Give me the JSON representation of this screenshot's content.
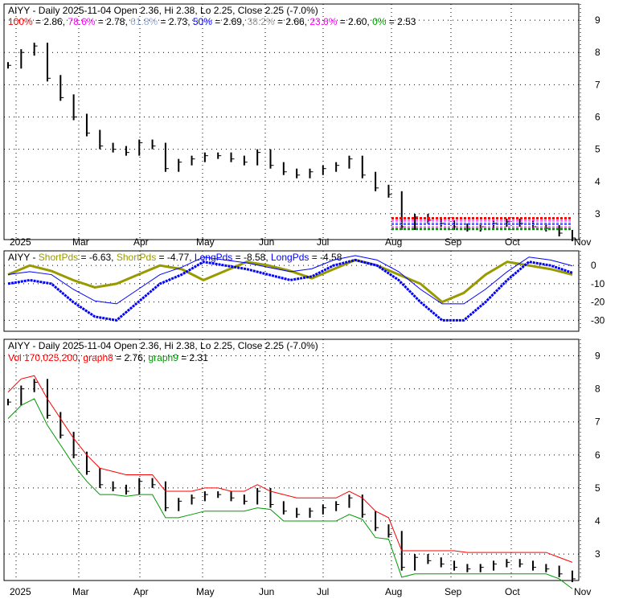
{
  "chart_data": [
    {
      "type": "line",
      "panel": "price-fib",
      "title": "AIYY - Daily 2025-11-04 Open 2.36, Hi 2.38, Lo 2.25, Close 2.25 (-7.0%)",
      "fib": [
        {
          "label": "100%",
          "value": "2.86",
          "color": "#ff0000"
        },
        {
          "label": "78.6%",
          "value": "2.78",
          "color": "#ff00ff"
        },
        {
          "label": "61.8%",
          "value": "2.73",
          "color": "#99aacc"
        },
        {
          "label": "50%",
          "value": "2.69",
          "color": "#0000ff"
        },
        {
          "label": "38.2%",
          "value": "2.66",
          "color": "#999999"
        },
        {
          "label": "23.6%",
          "value": "2.60",
          "color": "#ff00ff"
        },
        {
          "label": "0%",
          "value": "2.53",
          "color": "#009900"
        }
      ],
      "yticks": [
        3,
        4,
        5,
        6,
        7,
        8,
        9
      ],
      "ylim": [
        2.2,
        9.5
      ]
    },
    {
      "type": "line",
      "panel": "oscillator",
      "title_prefix": "AIYY - ",
      "legend": [
        {
          "label": "ShortPds",
          "value": "-6.63",
          "color": "#999900"
        },
        {
          "label": "ShortPds",
          "value": "-4.77",
          "color": "#999900"
        },
        {
          "label": "LongPds",
          "value": "-8.58",
          "color": "#0000ff"
        },
        {
          "label": "LongPds",
          "value": "-4.58",
          "color": "#0000ff"
        }
      ],
      "yticks": [
        0,
        -10,
        -20,
        -30
      ],
      "ylim": [
        -36,
        8
      ]
    },
    {
      "type": "line",
      "panel": "price-stops",
      "title": "AIYY - Daily 2025-11-04 Open 2.36, Hi 2.38, Lo 2.25, Close 2.25 (-7.0%)",
      "legend": [
        {
          "label": "Vol 170,025,200",
          "color": "#ff0000"
        },
        {
          "label": "graph8 = 2.76",
          "color": "#ff0000"
        },
        {
          "label": "graph9 = 2.31",
          "color": "#009900"
        }
      ],
      "yticks": [
        3,
        4,
        5,
        6,
        7,
        8,
        9
      ],
      "ylim": [
        2.2,
        9.5
      ]
    }
  ],
  "xlabels": [
    "2025",
    "Mar",
    "Apr",
    "May",
    "Jun",
    "Jul",
    "Aug",
    "Sep",
    "Oct",
    "Nov"
  ],
  "closes": [
    7.6,
    8.0,
    8.2,
    7.2,
    6.6,
    6.0,
    5.5,
    5.1,
    5.0,
    4.9,
    5.2,
    5.1,
    4.4,
    4.6,
    4.7,
    4.8,
    4.8,
    4.7,
    4.6,
    4.9,
    4.5,
    4.3,
    4.2,
    4.3,
    4.4,
    4.5,
    4.7,
    4.2,
    3.8,
    3.6,
    2.6,
    2.9,
    2.8,
    2.7,
    2.6,
    2.55,
    2.6,
    2.7,
    2.75,
    2.7,
    2.6,
    2.55,
    2.4,
    2.25
  ],
  "short_osc": [
    -5,
    0,
    -3,
    -8,
    -12,
    -10,
    -5,
    0,
    -2,
    -8,
    -3,
    2,
    0,
    -3,
    -7,
    -2,
    3,
    0,
    -5,
    -10,
    -20,
    -15,
    -5,
    2,
    0,
    -2,
    -5
  ],
  "long_osc": [
    -10,
    -8,
    -10,
    -20,
    -28,
    -30,
    -20,
    -10,
    -5,
    2,
    0,
    -2,
    -5,
    -8,
    -6,
    0,
    3,
    0,
    -8,
    -20,
    -30,
    -30,
    -20,
    -8,
    2,
    0,
    -4
  ]
}
